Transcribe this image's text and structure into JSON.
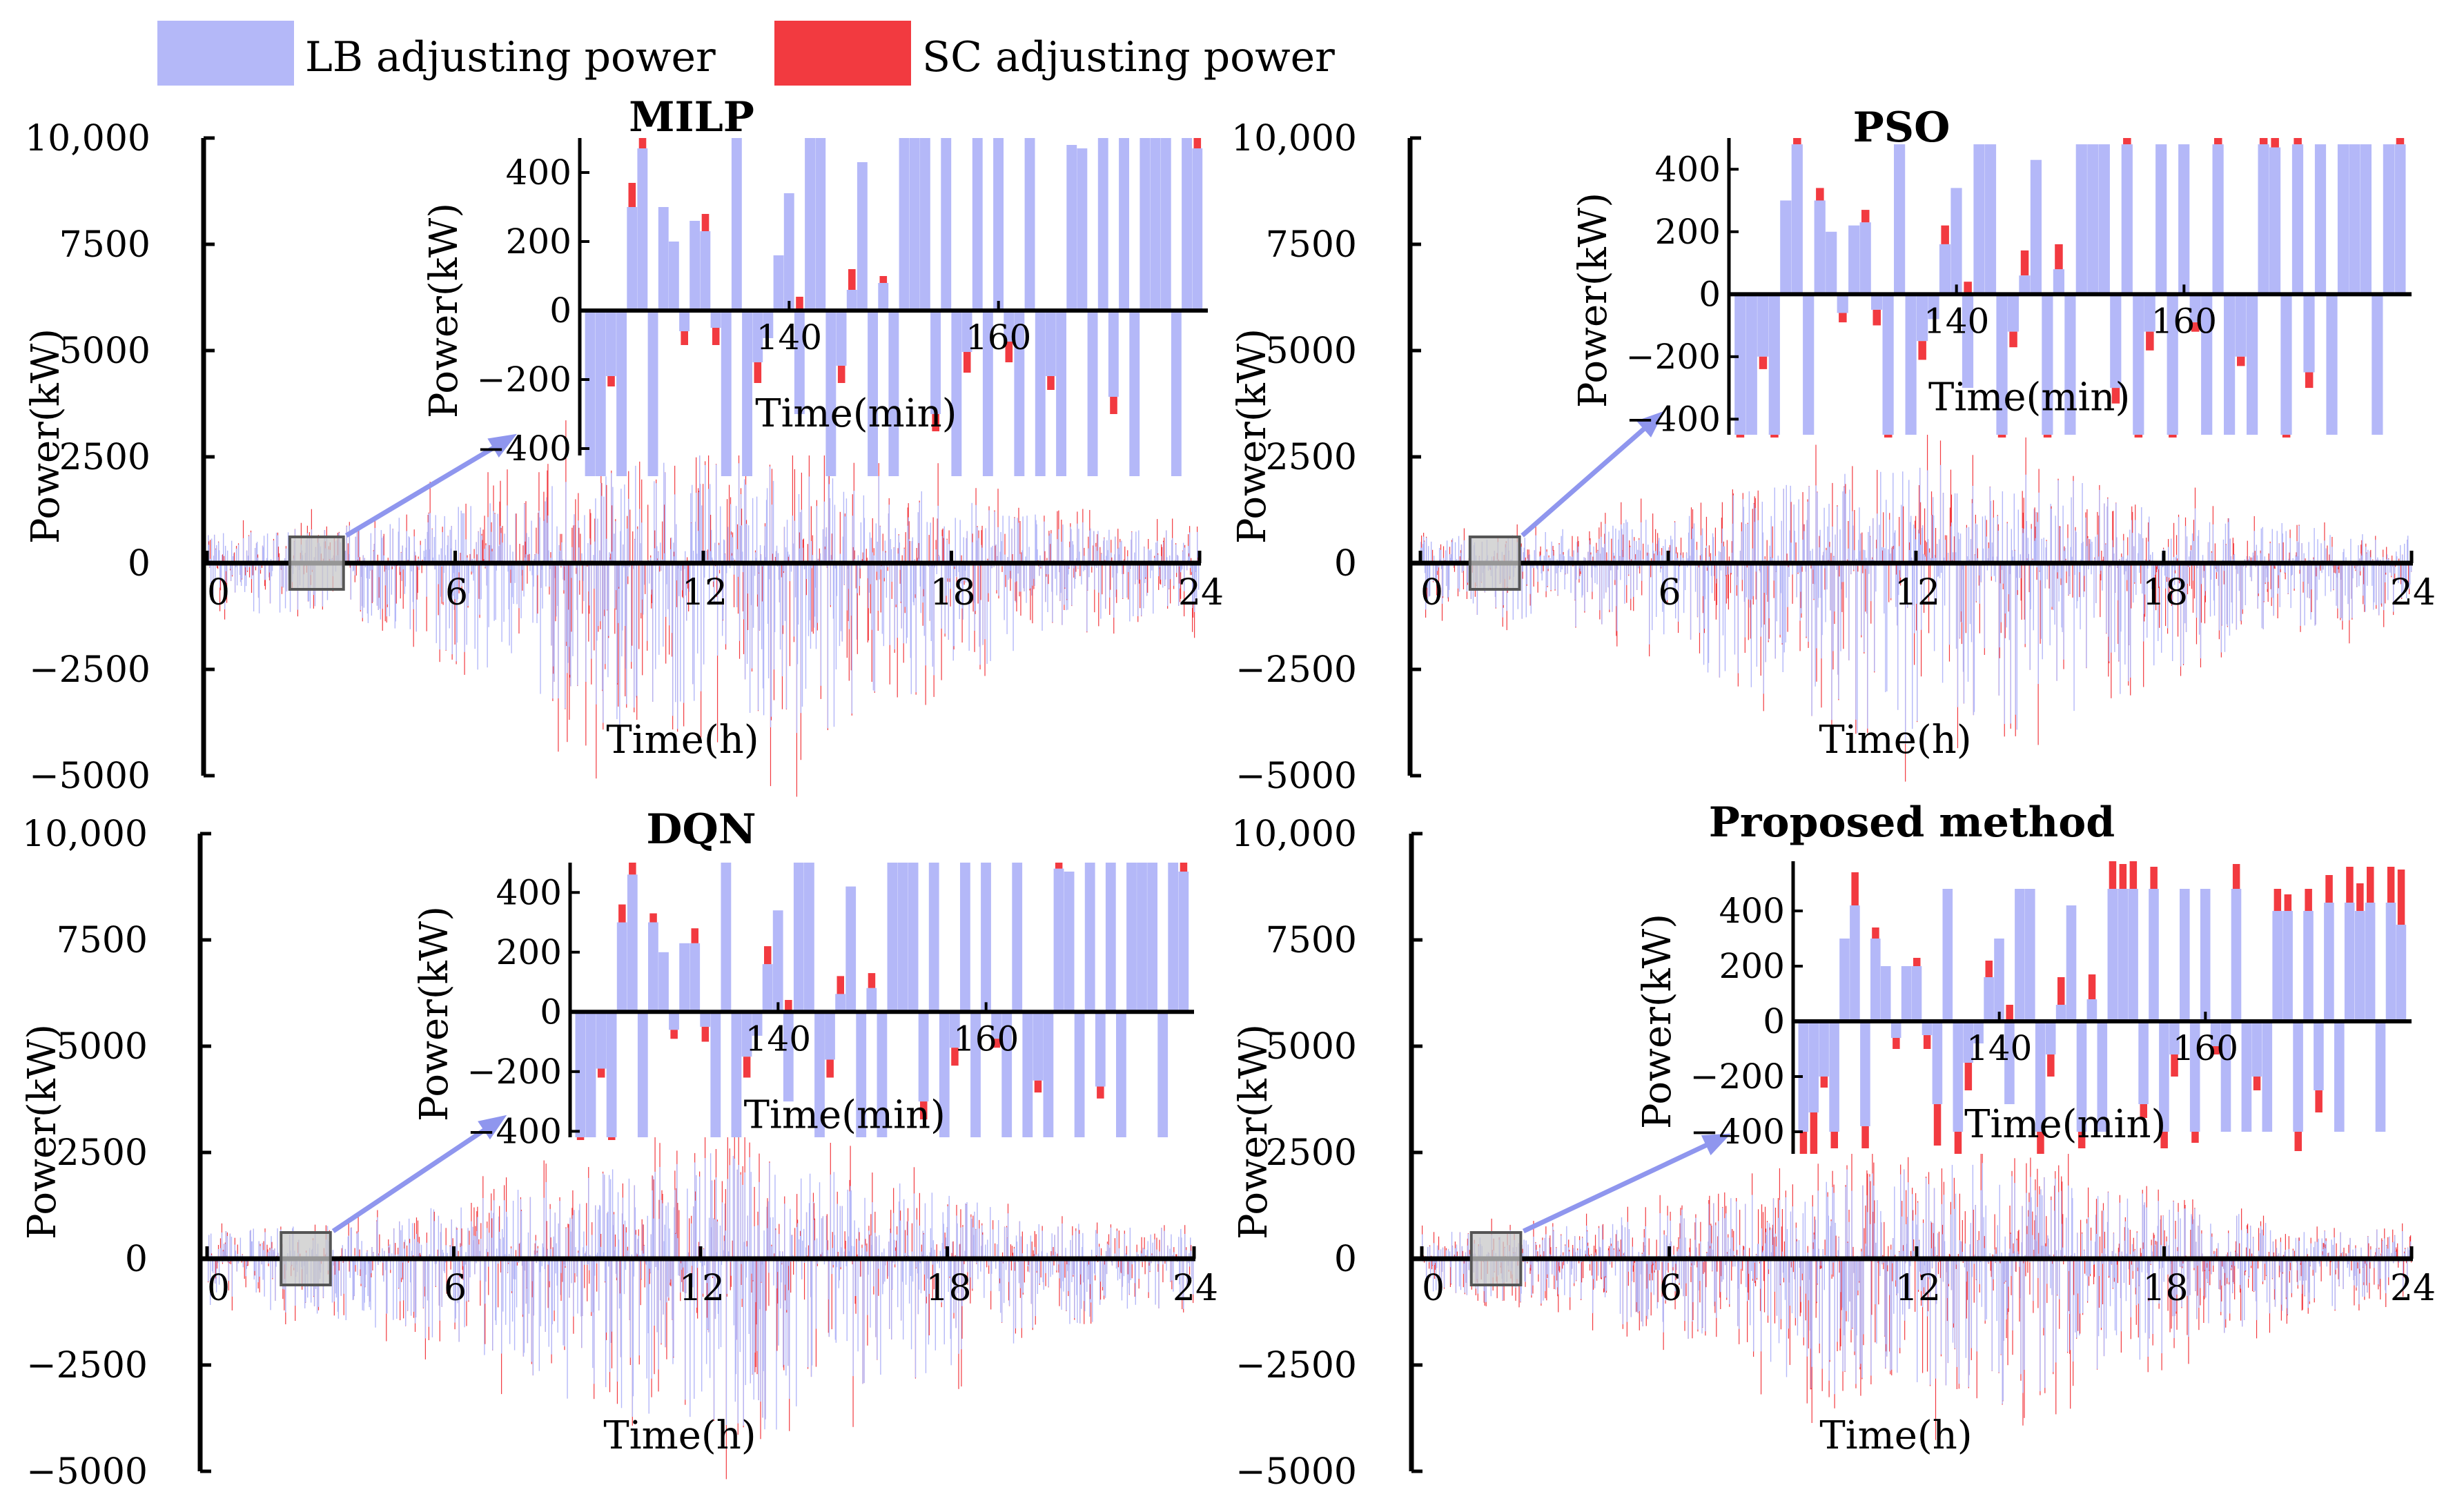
{
  "legend": {
    "items": [
      {
        "label": "LB adjusting power",
        "color": "#b4b8f8"
      },
      {
        "label": "SC adjusting power",
        "color": "#f23a40"
      }
    ]
  },
  "colors": {
    "lb": "#b4b8f8",
    "sc": "#f23a40",
    "zoom_box": "#c8c8c8",
    "arrow": "#8f96ee"
  },
  "chart_data": [
    {
      "type": "bar",
      "title": "MILP",
      "xlabel": "Time(h)",
      "ylabel": "Power(kW)",
      "xlim": [
        0,
        24
      ],
      "ylim": [
        -5000,
        10000
      ],
      "xticks": [
        0,
        6,
        12,
        18,
        24
      ],
      "yticks": [
        -5000,
        -2500,
        0,
        2500,
        5000,
        7500,
        10000
      ],
      "ytick_labels": [
        "−5000",
        "−2500",
        "0",
        "2500",
        "5000",
        "7500",
        "10,000"
      ],
      "envelope": {
        "lb_peak_pos": 2600,
        "lb_peak_neg": -4400,
        "sc_peak_pos": 4200,
        "sc_peak_neg": -4900
      },
      "zoom_window_h": [
        2.0,
        3.3
      ],
      "inset": {
        "xlabel": "Time(min)",
        "ylabel": "Power(kW)",
        "xlim": [
          120,
          180
        ],
        "ylim": [
          -420,
          500
        ],
        "xticks": [
          140,
          160
        ],
        "yticks": [
          -400,
          -200,
          0,
          200,
          400
        ],
        "ytick_labels": [
          "−400",
          "−200",
          "0",
          "200",
          "400"
        ],
        "x": [
          121,
          122,
          123,
          124,
          125,
          126,
          127,
          128,
          129,
          130,
          131,
          132,
          133,
          134,
          135,
          136,
          137,
          138,
          139,
          140,
          141,
          142,
          143,
          144,
          145,
          146,
          147,
          148,
          149,
          150,
          151,
          152,
          153,
          154,
          155,
          156,
          157,
          158,
          159,
          160,
          161,
          162,
          163,
          164,
          165,
          166,
          167,
          168,
          169,
          170,
          171,
          172,
          173,
          174,
          175,
          176,
          177,
          178,
          179
        ],
        "lb": [
          -480,
          -480,
          -190,
          -480,
          300,
          470,
          -480,
          300,
          200,
          -60,
          260,
          230,
          -50,
          -480,
          500,
          -480,
          -150,
          -80,
          160,
          340,
          -300,
          500,
          500,
          -480,
          -160,
          60,
          430,
          -480,
          80,
          -480,
          500,
          500,
          500,
          -300,
          500,
          -480,
          -120,
          500,
          -480,
          500,
          -90,
          -480,
          500,
          -480,
          -190,
          -480,
          480,
          470,
          -480,
          500,
          -250,
          500,
          -480,
          500,
          500,
          500,
          -480,
          500,
          470
        ],
        "sc": [
          0,
          0,
          -30,
          0,
          70,
          60,
          0,
          0,
          0,
          -40,
          0,
          50,
          -50,
          0,
          0,
          0,
          -60,
          0,
          0,
          0,
          40,
          0,
          0,
          0,
          -50,
          60,
          0,
          0,
          20,
          0,
          0,
          0,
          0,
          -50,
          0,
          0,
          -60,
          0,
          0,
          0,
          -60,
          0,
          0,
          0,
          -40,
          0,
          0,
          0,
          0,
          0,
          -50,
          0,
          0,
          0,
          0,
          0,
          0,
          0,
          60
        ]
      }
    },
    {
      "type": "bar",
      "title": "PSO",
      "xlabel": "Time(h)",
      "ylabel": "Power(kW)",
      "xlim": [
        0,
        24
      ],
      "ylim": [
        -5000,
        10000
      ],
      "xticks": [
        0,
        6,
        12,
        18,
        24
      ],
      "yticks": [
        -5000,
        -2500,
        0,
        2500,
        5000,
        7500,
        10000
      ],
      "ytick_labels": [
        "−5000",
        "−2500",
        "0",
        "2500",
        "5000",
        "7500",
        "10,000"
      ],
      "envelope": {
        "lb_peak_pos": 2400,
        "lb_peak_neg": -4300,
        "sc_peak_pos": 3100,
        "sc_peak_neg": -3900
      },
      "zoom_window_h": [
        1.2,
        2.4
      ],
      "inset": {
        "xlabel": "Time(min)",
        "ylabel": "Power(kW)",
        "xlim": [
          120,
          180
        ],
        "ylim": [
          -450,
          500
        ],
        "xticks": [
          140,
          160
        ],
        "yticks": [
          -400,
          -200,
          0,
          200,
          400
        ],
        "ytick_labels": [
          "−400",
          "−200",
          "0",
          "200",
          "400"
        ],
        "x": [
          121,
          122,
          123,
          124,
          125,
          126,
          127,
          128,
          129,
          130,
          131,
          132,
          133,
          134,
          135,
          136,
          137,
          138,
          139,
          140,
          141,
          142,
          143,
          144,
          145,
          146,
          147,
          148,
          149,
          150,
          151,
          152,
          153,
          154,
          155,
          156,
          157,
          158,
          159,
          160,
          161,
          162,
          163,
          164,
          165,
          166,
          167,
          168,
          169,
          170,
          171,
          172,
          173,
          174,
          175,
          176,
          177,
          178,
          179
        ],
        "lb": [
          -450,
          -450,
          -200,
          -450,
          300,
          480,
          -450,
          300,
          200,
          -60,
          220,
          230,
          -50,
          -450,
          480,
          -450,
          -150,
          -80,
          160,
          340,
          -300,
          480,
          480,
          -450,
          -120,
          60,
          430,
          -450,
          80,
          -450,
          480,
          480,
          480,
          -300,
          480,
          -450,
          -120,
          480,
          -450,
          480,
          -90,
          -450,
          480,
          -450,
          -200,
          -450,
          480,
          470,
          -450,
          480,
          -250,
          480,
          -450,
          480,
          480,
          480,
          -450,
          480,
          480
        ],
        "sc": [
          -30,
          0,
          -40,
          -60,
          0,
          90,
          0,
          40,
          0,
          -30,
          0,
          40,
          -50,
          -60,
          0,
          0,
          -60,
          0,
          60,
          0,
          40,
          0,
          0,
          -60,
          -50,
          80,
          0,
          -70,
          80,
          0,
          0,
          0,
          0,
          -50,
          40,
          -40,
          -60,
          0,
          -30,
          0,
          -30,
          0,
          40,
          0,
          -30,
          0,
          30,
          50,
          -70,
          120,
          -50,
          0,
          0,
          0,
          0,
          0,
          0,
          0,
          100
        ]
      }
    },
    {
      "type": "bar",
      "title": "DQN",
      "xlabel": "Time(h)",
      "ylabel": "Power(kW)",
      "xlim": [
        0,
        24
      ],
      "ylim": [
        -5000,
        10000
      ],
      "xticks": [
        0,
        6,
        12,
        18,
        24
      ],
      "yticks": [
        -5000,
        -2500,
        0,
        2500,
        5000,
        7500,
        10000
      ],
      "ytick_labels": [
        "−5000",
        "−2500",
        "0",
        "2500",
        "5000",
        "7500",
        "10,000"
      ],
      "envelope": {
        "lb_peak_pos": 2500,
        "lb_peak_neg": -4200,
        "sc_peak_pos": 2800,
        "sc_peak_neg": -3700
      },
      "zoom_window_h": [
        1.8,
        3.0
      ],
      "inset": {
        "xlabel": "Time(min)",
        "ylabel": "Power(kW)",
        "xlim": [
          120,
          180
        ],
        "ylim": [
          -420,
          500
        ],
        "xticks": [
          140,
          160
        ],
        "yticks": [
          -400,
          -200,
          0,
          200,
          400
        ],
        "ytick_labels": [
          "−400",
          "−200",
          "0",
          "200",
          "400"
        ],
        "x": [
          121,
          122,
          123,
          124,
          125,
          126,
          127,
          128,
          129,
          130,
          131,
          132,
          133,
          134,
          135,
          136,
          137,
          138,
          139,
          140,
          141,
          142,
          143,
          144,
          145,
          146,
          147,
          148,
          149,
          150,
          151,
          152,
          153,
          154,
          155,
          156,
          157,
          158,
          159,
          160,
          161,
          162,
          163,
          164,
          165,
          166,
          167,
          168,
          169,
          170,
          171,
          172,
          173,
          174,
          175,
          176,
          177,
          178,
          179
        ],
        "lb": [
          -420,
          -420,
          -190,
          -420,
          300,
          460,
          -420,
          300,
          200,
          -60,
          230,
          230,
          -50,
          -420,
          500,
          -420,
          -150,
          -80,
          160,
          340,
          -300,
          500,
          500,
          -420,
          -160,
          60,
          420,
          -420,
          80,
          -420,
          500,
          500,
          500,
          -300,
          500,
          -420,
          -120,
          500,
          -420,
          500,
          -90,
          -420,
          500,
          -420,
          -230,
          -420,
          480,
          470,
          -420,
          500,
          -250,
          500,
          -420,
          500,
          500,
          500,
          -420,
          500,
          470
        ],
        "sc": [
          -20,
          0,
          -30,
          -30,
          60,
          60,
          0,
          30,
          0,
          -30,
          0,
          50,
          -50,
          0,
          0,
          0,
          -70,
          0,
          60,
          0,
          40,
          0,
          0,
          0,
          -60,
          60,
          0,
          0,
          50,
          0,
          0,
          0,
          0,
          -60,
          0,
          0,
          -60,
          0,
          0,
          0,
          -30,
          0,
          0,
          0,
          -40,
          0,
          20,
          0,
          0,
          0,
          -40,
          0,
          0,
          0,
          0,
          0,
          0,
          0,
          50
        ]
      }
    },
    {
      "type": "bar",
      "title": "Proposed method",
      "xlabel": "Time(h)",
      "ylabel": "Power(kW)",
      "xlim": [
        0,
        24
      ],
      "ylim": [
        -5000,
        10000
      ],
      "xticks": [
        0,
        6,
        12,
        18,
        24
      ],
      "yticks": [
        -5000,
        -2500,
        0,
        2500,
        5000,
        7500,
        10000
      ],
      "ytick_labels": [
        "−5000",
        "−2500",
        "0",
        "2500",
        "5000",
        "7500",
        "10,000"
      ],
      "envelope": {
        "lb_peak_pos": 2300,
        "lb_peak_neg": -3600,
        "sc_peak_pos": 2900,
        "sc_peak_neg": -3900
      },
      "zoom_window_h": [
        1.2,
        2.4
      ],
      "inset": {
        "xlabel": "Time(min)",
        "ylabel": "Power(kW)",
        "xlim": [
          120,
          180
        ],
        "ylim": [
          -480,
          580
        ],
        "xticks": [
          140,
          160
        ],
        "yticks": [
          -400,
          -200,
          0,
          200,
          400
        ],
        "ytick_labels": [
          "−400",
          "−200",
          "0",
          "200",
          "400"
        ],
        "x": [
          121,
          122,
          123,
          124,
          125,
          126,
          127,
          128,
          129,
          130,
          131,
          132,
          133,
          134,
          135,
          136,
          137,
          138,
          139,
          140,
          141,
          142,
          143,
          144,
          145,
          146,
          147,
          148,
          149,
          150,
          151,
          152,
          153,
          154,
          155,
          156,
          157,
          158,
          159,
          160,
          161,
          162,
          163,
          164,
          165,
          166,
          167,
          168,
          169,
          170,
          171,
          172,
          173,
          174,
          175,
          176,
          177,
          178,
          179
        ],
        "lb": [
          -400,
          -330,
          -200,
          -400,
          300,
          420,
          -380,
          300,
          200,
          -60,
          200,
          200,
          -50,
          -300,
          480,
          -400,
          -150,
          -80,
          160,
          300,
          -300,
          480,
          480,
          -400,
          -120,
          60,
          420,
          -400,
          80,
          -400,
          480,
          480,
          480,
          -300,
          480,
          -400,
          -120,
          480,
          -400,
          480,
          -90,
          -400,
          480,
          -400,
          -200,
          -400,
          400,
          400,
          -400,
          400,
          -250,
          430,
          -400,
          430,
          400,
          430,
          -400,
          430,
          350
        ],
        "sc": [
          -80,
          -150,
          -40,
          -60,
          0,
          120,
          -80,
          40,
          0,
          -40,
          0,
          30,
          -50,
          -150,
          0,
          -80,
          -100,
          0,
          60,
          0,
          60,
          0,
          0,
          -160,
          -80,
          100,
          0,
          -60,
          90,
          0,
          100,
          90,
          100,
          -50,
          80,
          -60,
          -80,
          0,
          -40,
          0,
          -30,
          0,
          90,
          0,
          -50,
          0,
          80,
          60,
          -70,
          80,
          -80,
          100,
          0,
          130,
          100,
          130,
          0,
          130,
          200
        ]
      }
    }
  ]
}
